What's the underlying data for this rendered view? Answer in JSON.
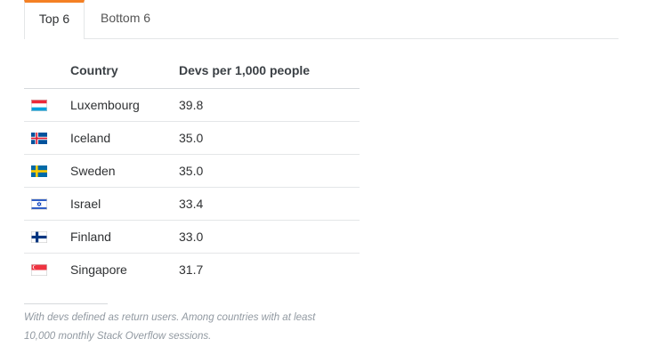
{
  "tabs": [
    {
      "label": "Top 6",
      "active": true
    },
    {
      "label": "Bottom 6",
      "active": false
    }
  ],
  "table": {
    "headers": {
      "flag": "",
      "country": "Country",
      "devs": "Devs per 1,000 people"
    },
    "rows": [
      {
        "country": "Luxembourg",
        "devs": "39.8",
        "flag_icon": "luxembourg-flag-icon"
      },
      {
        "country": "Iceland",
        "devs": "35.0",
        "flag_icon": "iceland-flag-icon"
      },
      {
        "country": "Sweden",
        "devs": "35.0",
        "flag_icon": "sweden-flag-icon"
      },
      {
        "country": "Israel",
        "devs": "33.4",
        "flag_icon": "israel-flag-icon"
      },
      {
        "country": "Finland",
        "devs": "33.0",
        "flag_icon": "finland-flag-icon"
      },
      {
        "country": "Singapore",
        "devs": "31.7",
        "flag_icon": "singapore-flag-icon"
      }
    ]
  },
  "footnote": "With devs defined as return users. Among countries with at least 10,000 monthly Stack Overflow sessions.",
  "colors": {
    "accent": "#f48024",
    "border": "#e4e6e8",
    "footnote": "#9199a1"
  }
}
